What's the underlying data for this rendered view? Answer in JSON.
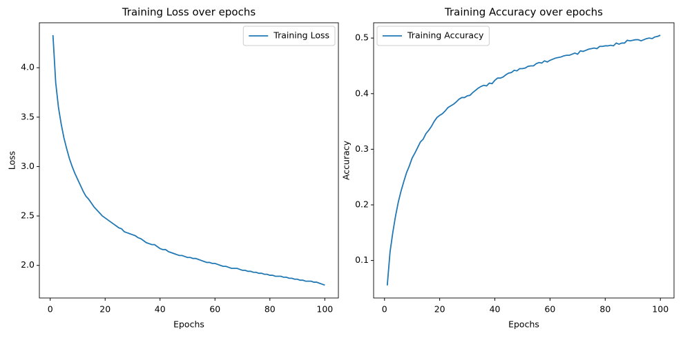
{
  "chart_data": [
    {
      "type": "line",
      "title": "Training Loss over epochs",
      "xlabel": "Epochs",
      "ylabel": "Loss",
      "legend": "upper right",
      "x": [
        1,
        2,
        3,
        4,
        5,
        6,
        7,
        8,
        9,
        10,
        11,
        12,
        13,
        14,
        15,
        16,
        17,
        18,
        19,
        20,
        21,
        22,
        23,
        24,
        25,
        26,
        27,
        28,
        29,
        30,
        31,
        32,
        33,
        34,
        35,
        36,
        37,
        38,
        39,
        40,
        41,
        42,
        43,
        44,
        45,
        46,
        47,
        48,
        49,
        50,
        51,
        52,
        53,
        54,
        55,
        56,
        57,
        58,
        59,
        60,
        61,
        62,
        63,
        64,
        65,
        66,
        67,
        68,
        69,
        70,
        71,
        72,
        73,
        74,
        75,
        76,
        77,
        78,
        79,
        80,
        81,
        82,
        83,
        84,
        85,
        86,
        87,
        88,
        89,
        90,
        91,
        92,
        93,
        94,
        95,
        96,
        97,
        98,
        99,
        100
      ],
      "series": [
        {
          "name": "Training Loss",
          "color": "#1f77b4",
          "values": [
            4.33,
            3.85,
            3.6,
            3.43,
            3.29,
            3.18,
            3.08,
            3.0,
            2.93,
            2.87,
            2.81,
            2.75,
            2.7,
            2.67,
            2.63,
            2.59,
            2.56,
            2.53,
            2.5,
            2.48,
            2.46,
            2.44,
            2.42,
            2.4,
            2.38,
            2.37,
            2.34,
            2.33,
            2.32,
            2.31,
            2.3,
            2.28,
            2.27,
            2.25,
            2.23,
            2.22,
            2.21,
            2.21,
            2.19,
            2.17,
            2.16,
            2.16,
            2.14,
            2.13,
            2.12,
            2.11,
            2.1,
            2.1,
            2.09,
            2.08,
            2.08,
            2.07,
            2.07,
            2.06,
            2.05,
            2.04,
            2.03,
            2.03,
            2.02,
            2.02,
            2.01,
            2.0,
            1.99,
            1.99,
            1.98,
            1.97,
            1.97,
            1.97,
            1.96,
            1.95,
            1.95,
            1.94,
            1.94,
            1.93,
            1.93,
            1.92,
            1.92,
            1.91,
            1.91,
            1.9,
            1.9,
            1.89,
            1.89,
            1.89,
            1.88,
            1.88,
            1.87,
            1.87,
            1.86,
            1.86,
            1.85,
            1.85,
            1.84,
            1.84,
            1.84,
            1.83,
            1.83,
            1.82,
            1.81,
            1.8
          ]
        }
      ],
      "xlim": [
        -3.95,
        104.95
      ],
      "ylim": [
        1.67,
        4.455
      ],
      "xticks": [
        0,
        20,
        40,
        60,
        80,
        100
      ],
      "yticks": [
        {
          "value": 2,
          "label": "2.0"
        },
        2.5,
        {
          "value": 3,
          "label": "3.0"
        },
        3.5,
        {
          "value": 4,
          "label": "4.0"
        }
      ]
    },
    {
      "type": "line",
      "title": "Training Accuracy over epochs",
      "xlabel": "Epochs",
      "ylabel": "Accuracy",
      "legend": "upper left",
      "x": [
        1,
        2,
        3,
        4,
        5,
        6,
        7,
        8,
        9,
        10,
        11,
        12,
        13,
        14,
        15,
        16,
        17,
        18,
        19,
        20,
        21,
        22,
        23,
        24,
        25,
        26,
        27,
        28,
        29,
        30,
        31,
        32,
        33,
        34,
        35,
        36,
        37,
        38,
        39,
        40,
        41,
        42,
        43,
        44,
        45,
        46,
        47,
        48,
        49,
        50,
        51,
        52,
        53,
        54,
        55,
        56,
        57,
        58,
        59,
        60,
        61,
        62,
        63,
        64,
        65,
        66,
        67,
        68,
        69,
        70,
        71,
        72,
        73,
        74,
        75,
        76,
        77,
        78,
        79,
        80,
        81,
        82,
        83,
        84,
        85,
        86,
        87,
        88,
        89,
        90,
        91,
        92,
        93,
        94,
        95,
        96,
        97,
        98,
        99,
        100
      ],
      "series": [
        {
          "name": "Training Accuracy",
          "color": "#1f77b4",
          "values": [
            0.055,
            0.115,
            0.15,
            0.18,
            0.205,
            0.225,
            0.242,
            0.258,
            0.27,
            0.284,
            0.293,
            0.303,
            0.313,
            0.318,
            0.328,
            0.334,
            0.341,
            0.35,
            0.357,
            0.361,
            0.364,
            0.369,
            0.375,
            0.378,
            0.381,
            0.385,
            0.39,
            0.393,
            0.393,
            0.396,
            0.397,
            0.402,
            0.406,
            0.41,
            0.413,
            0.415,
            0.414,
            0.419,
            0.418,
            0.424,
            0.428,
            0.428,
            0.43,
            0.434,
            0.437,
            0.438,
            0.442,
            0.441,
            0.445,
            0.445,
            0.446,
            0.449,
            0.45,
            0.45,
            0.454,
            0.456,
            0.455,
            0.459,
            0.457,
            0.46,
            0.462,
            0.464,
            0.465,
            0.466,
            0.468,
            0.469,
            0.469,
            0.471,
            0.473,
            0.471,
            0.477,
            0.476,
            0.478,
            0.48,
            0.481,
            0.482,
            0.481,
            0.485,
            0.485,
            0.486,
            0.486,
            0.487,
            0.486,
            0.491,
            0.489,
            0.491,
            0.491,
            0.496,
            0.495,
            0.496,
            0.497,
            0.497,
            0.495,
            0.497,
            0.499,
            0.5,
            0.499,
            0.502,
            0.503,
            0.505
          ]
        }
      ],
      "xlim": [
        -3.95,
        104.95
      ],
      "ylim": [
        0.0325,
        0.5275
      ],
      "xticks": [
        0,
        20,
        40,
        60,
        80,
        100
      ],
      "yticks": [
        0.1,
        0.2,
        0.3,
        0.4,
        0.5
      ]
    }
  ]
}
